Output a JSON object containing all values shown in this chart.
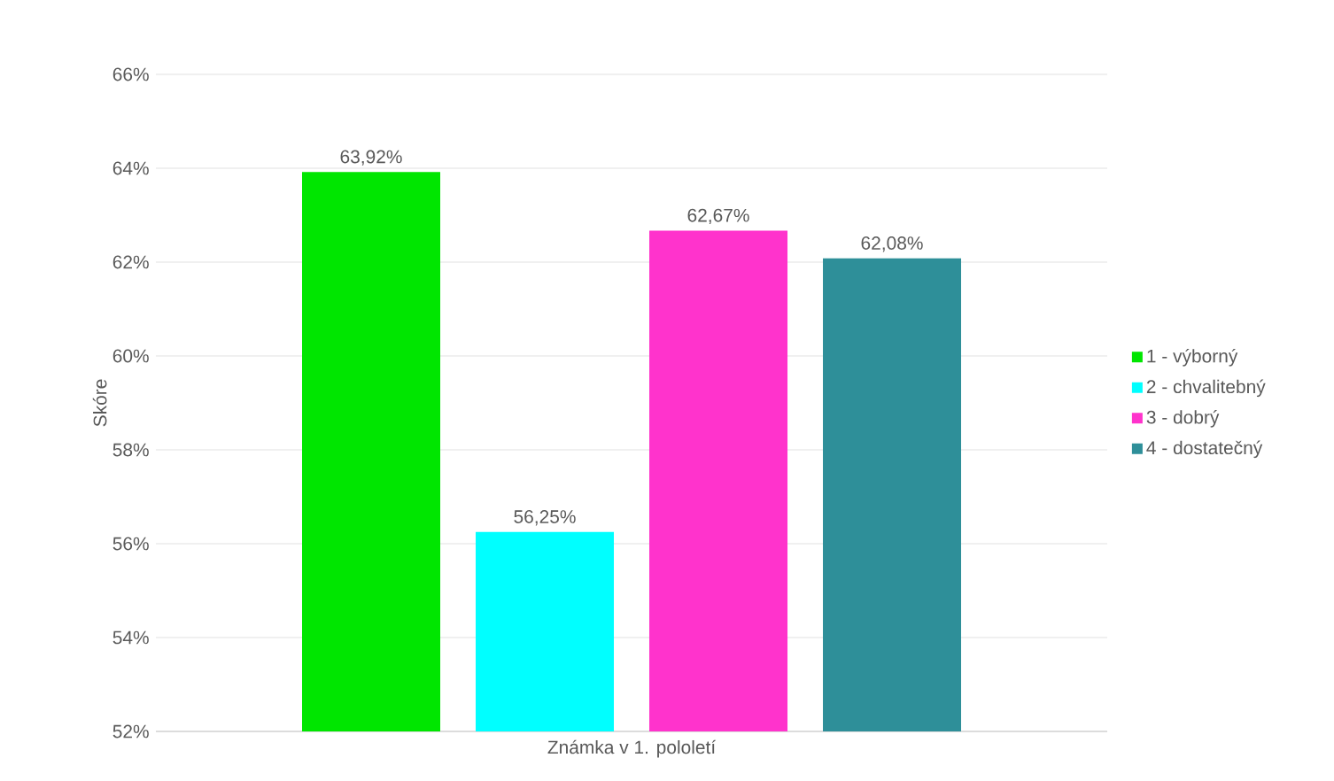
{
  "chart_data": {
    "type": "bar",
    "xlabel": "Známka v 1. pololetí",
    "ylabel": "Skóre",
    "categories": [
      null
    ],
    "series": [
      {
        "name": "1 - výborný",
        "color": "#00e600",
        "values": [
          63.92
        ],
        "value_labels": [
          "63,92%"
        ]
      },
      {
        "name": "2 - chvalitebný",
        "color": "#00ffff",
        "values": [
          56.25
        ],
        "value_labels": [
          "56,25%"
        ]
      },
      {
        "name": "3 - dobrý",
        "color": "#ff33cc",
        "values": [
          62.67
        ],
        "value_labels": [
          "62,67%"
        ]
      },
      {
        "name": "4 - dostatečný",
        "color": "#2e8f99",
        "values": [
          62.08
        ],
        "value_labels": [
          "62,08%"
        ]
      }
    ],
    "ylim": [
      52,
      66
    ],
    "yticks": [
      {
        "value": 52,
        "label": "52%"
      },
      {
        "value": 54,
        "label": "54%"
      },
      {
        "value": 56,
        "label": "56%"
      },
      {
        "value": 58,
        "label": "58%"
      },
      {
        "value": 60,
        "label": "60%"
      },
      {
        "value": 62,
        "label": "62%"
      },
      {
        "value": 64,
        "label": "64%"
      },
      {
        "value": 66,
        "label": "66%"
      }
    ],
    "grid": "y",
    "legend": "right"
  }
}
